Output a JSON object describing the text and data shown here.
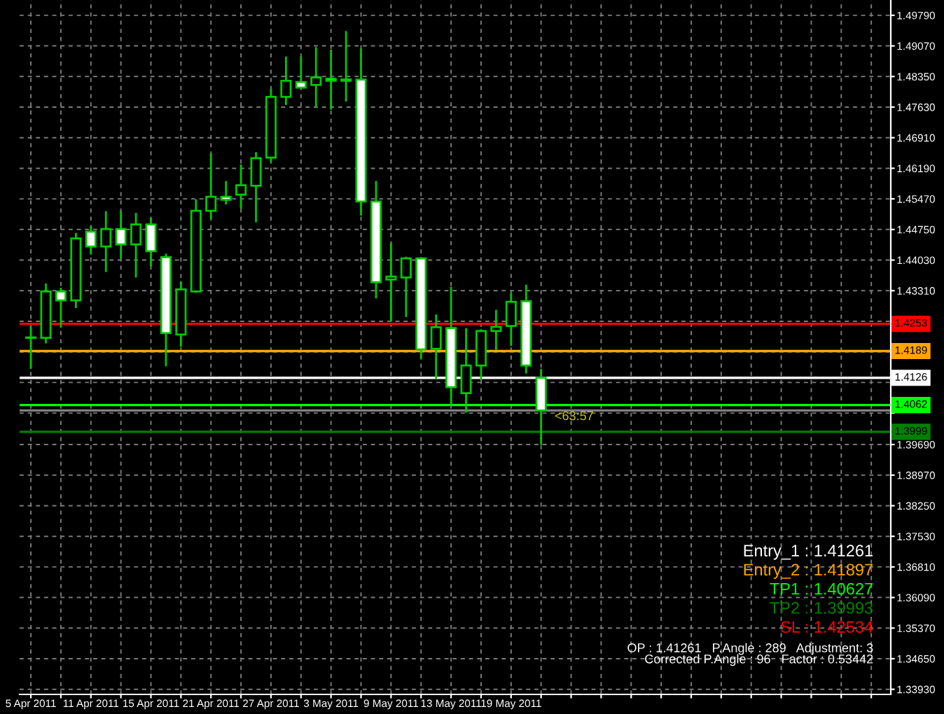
{
  "chart_data": {
    "type": "candlestick",
    "categories": [
      "5 Apr 2011",
      null,
      null,
      null,
      "11 Apr 2011",
      null,
      null,
      null,
      "15 Apr 2011",
      null,
      null,
      null,
      "21 Apr 2011",
      null,
      null,
      null,
      "27 Apr 2011",
      null,
      null,
      null,
      "3 May 2011",
      null,
      null,
      null,
      "9 May 2011",
      null,
      null,
      null,
      "13 May 2011",
      null,
      null,
      null,
      "19 May 2011",
      null,
      null,
      null,
      null,
      null,
      null,
      null,
      null,
      null,
      null,
      null,
      null,
      null,
      null,
      null,
      null,
      null,
      null,
      null,
      null,
      null,
      null,
      null,
      null,
      null
    ],
    "ohlc": [
      [
        1.422,
        1.4247,
        1.4147,
        1.4221
      ],
      [
        1.422,
        1.4348,
        1.4207,
        1.4329
      ],
      [
        1.4329,
        1.4338,
        1.4244,
        1.4308
      ],
      [
        1.4308,
        1.4467,
        1.429,
        1.4454
      ],
      [
        1.447,
        1.4483,
        1.4416,
        1.4435
      ],
      [
        1.4435,
        1.4518,
        1.4375,
        1.4476
      ],
      [
        1.4476,
        1.4519,
        1.4407,
        1.444
      ],
      [
        1.444,
        1.4514,
        1.4362,
        1.4487
      ],
      [
        1.4487,
        1.4503,
        1.4388,
        1.4424
      ],
      [
        1.441,
        1.4418,
        1.4153,
        1.4231
      ],
      [
        1.4228,
        1.4353,
        1.4199,
        1.4334
      ],
      [
        1.4329,
        1.4546,
        1.4326,
        1.4519
      ],
      [
        1.4519,
        1.4654,
        1.45,
        1.4552
      ],
      [
        1.4552,
        1.4589,
        1.4534,
        1.4545
      ],
      [
        1.4557,
        1.4628,
        1.4524,
        1.4579
      ],
      [
        1.4578,
        1.4657,
        1.4492,
        1.4643
      ],
      [
        1.4644,
        1.4806,
        1.4633,
        1.4787
      ],
      [
        1.4787,
        1.4882,
        1.4768,
        1.4825
      ],
      [
        1.4822,
        1.4882,
        1.4807,
        1.4809
      ],
      [
        1.4815,
        1.4904,
        1.4763,
        1.4833
      ],
      [
        1.483,
        1.4898,
        1.4757,
        1.4825
      ],
      [
        1.4825,
        1.4942,
        1.4776,
        1.4828
      ],
      [
        1.4828,
        1.4901,
        1.4508,
        1.4541
      ],
      [
        1.4541,
        1.4589,
        1.4313,
        1.4351
      ],
      [
        1.4357,
        1.4443,
        1.4258,
        1.4364
      ],
      [
        1.4362,
        1.4411,
        1.4269,
        1.4407
      ],
      [
        1.4407,
        1.441,
        1.4171,
        1.4193
      ],
      [
        1.4194,
        1.4275,
        1.4123,
        1.4245
      ],
      [
        1.4243,
        1.434,
        1.406,
        1.4104
      ],
      [
        1.409,
        1.4243,
        1.4044,
        1.4155
      ],
      [
        1.4155,
        1.424,
        1.4121,
        1.4236
      ],
      [
        1.4236,
        1.4286,
        1.4191,
        1.4246
      ],
      [
        1.4248,
        1.4326,
        1.4201,
        1.4305
      ],
      [
        1.4306,
        1.4345,
        1.4136,
        1.4155
      ],
      [
        1.4126,
        1.4147,
        1.3968,
        1.4049
      ],
      null,
      null,
      null,
      null,
      null,
      null,
      null,
      null,
      null,
      null,
      null,
      null,
      null,
      null,
      null,
      null,
      null,
      null,
      null,
      null,
      null,
      null,
      null
    ],
    "color": "#00c800",
    "colors": [
      "#000000",
      "#000000",
      "#ffffff",
      "#000000",
      "#ffffff",
      "#000000",
      "#ffffff",
      "#000000",
      "#ffffff",
      "#ffffff",
      "#000000",
      "#000000",
      "#000000",
      "#ffffff",
      "#000000",
      "#000000",
      "#000000",
      "#000000",
      "#ffffff",
      "#000000",
      "#ffffff",
      "#000000",
      "#ffffff",
      "#ffffff",
      "#000000",
      "#000000",
      "#ffffff",
      "#000000",
      "#ffffff",
      "#000000",
      "#000000",
      "#000000",
      "#000000",
      "#ffffff",
      "#ffffff",
      null,
      null,
      null,
      null,
      null,
      null,
      null,
      null,
      null,
      null,
      null,
      null,
      null,
      null,
      null,
      null,
      null,
      null,
      null,
      null,
      null,
      null,
      null
    ],
    "ylim": [
      1.3381,
      1.5015
    ],
    "yticks": [
      {
        "value": 1.4979,
        "label": "1.49790"
      },
      {
        "value": 1.4907,
        "label": "1.49070"
      },
      {
        "value": 1.4835,
        "label": "1.48350"
      },
      {
        "value": 1.4763,
        "label": "1.47630"
      },
      {
        "value": 1.4691,
        "label": "1.46910"
      },
      {
        "value": 1.4619,
        "label": "1.46190"
      },
      {
        "value": 1.4547,
        "label": "1.45470"
      },
      {
        "value": 1.4475,
        "label": "1.44750"
      },
      {
        "value": 1.4403,
        "label": "1.44030"
      },
      {
        "value": 1.4331,
        "label": "1.43310"
      },
      {
        "value": 1.4259,
        "label": null
      },
      {
        "value": 1.4187,
        "label": null
      },
      {
        "value": 1.4115,
        "label": null
      },
      {
        "value": 1.4043,
        "label": null
      },
      {
        "value": 1.3969,
        "label": "1.39690"
      },
      {
        "value": 1.3897,
        "label": "1.38970"
      },
      {
        "value": 1.3825,
        "label": "1.38250"
      },
      {
        "value": 1.3753,
        "label": "1.37530"
      },
      {
        "value": 1.3681,
        "label": "1.36810"
      },
      {
        "value": 1.3609,
        "label": "1.36090"
      },
      {
        "value": 1.3537,
        "label": "1.35370"
      },
      {
        "value": 1.3465,
        "label": "1.34650"
      },
      {
        "value": 1.3393,
        "label": "1.33930"
      }
    ],
    "grid": true,
    "ref_lines": [
      {
        "axis": "y",
        "value": 1.4126,
        "label": "1.4126",
        "color": "#ffffff",
        "line_style": "solid"
      },
      {
        "axis": "y",
        "value": 1.4189,
        "label": "1.4189",
        "color": "#ffa500",
        "line_style": "solid"
      },
      {
        "axis": "y",
        "value": 1.4062,
        "label": "1.4062",
        "color": "#00ff00",
        "line_style": "solid"
      },
      {
        "axis": "y",
        "value": 1.3999,
        "label": "1.3999",
        "color": "#008000",
        "line_style": "solid"
      },
      {
        "axis": "y",
        "value": 1.4253,
        "label": "1.4253",
        "color": "#ff0000",
        "line_style": "solid"
      },
      {
        "axis": "y",
        "value": 1.4049,
        "label": null,
        "color": "#808080",
        "line_style": "solid"
      }
    ],
    "annotations": [
      {
        "text": "<63:57",
        "y": 1.4048
      },
      "Entry_1 : 1.41261",
      "Entry_2 : 1.41897",
      "TP1 : 1.40627",
      "TP2 : 1.39993",
      "SL : 1.42534",
      "OP : 1.41261   P.Angle : 289   Adjustment: 3",
      "Corrected P.Angle : 96   Factor : 0.53442"
    ]
  }
}
